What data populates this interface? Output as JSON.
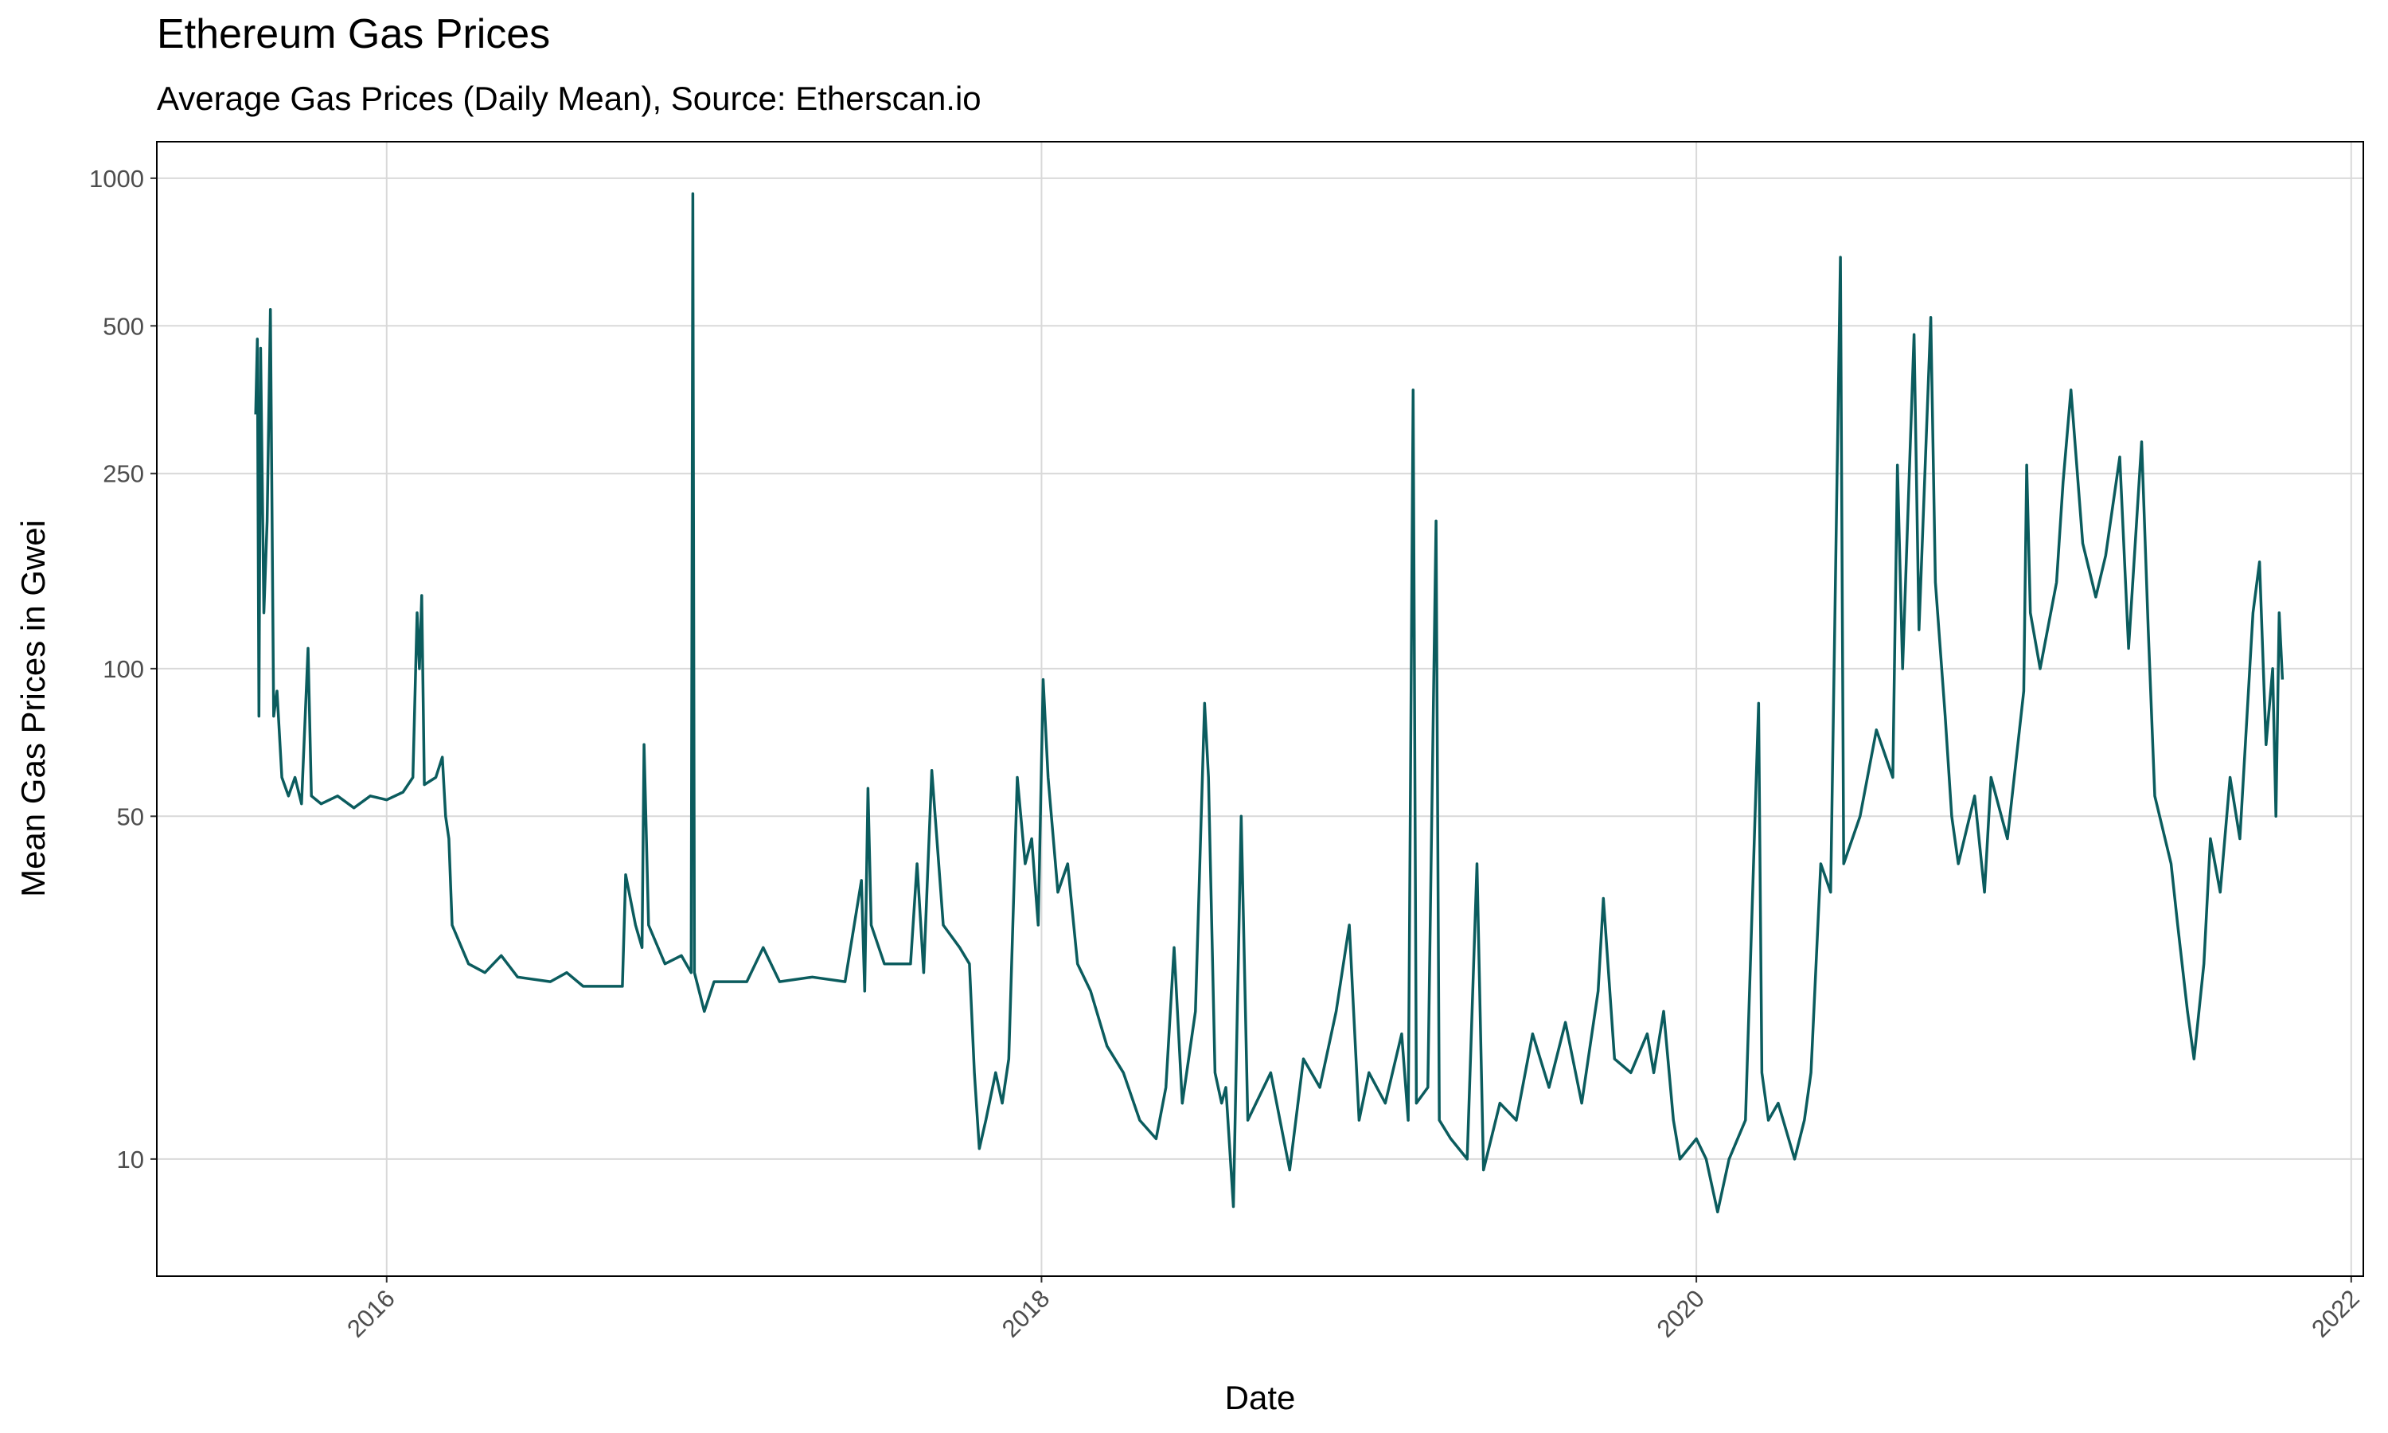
{
  "chart_data": {
    "type": "line",
    "title": "Ethereum Gas Prices",
    "subtitle": "Average Gas Prices (Daily Mean), Source: Etherscan.io",
    "xlabel": "Date",
    "ylabel": "Mean Gas Prices in Gwei",
    "color": "#0b5c5e",
    "log_y": true,
    "grid": true,
    "xlim": [
      2015.298,
      2022.037
    ],
    "xticks": [
      2016,
      2018,
      2020,
      2022
    ],
    "ylim": [
      5.77,
      1187
    ],
    "yticks": [
      10,
      50,
      100,
      250,
      500,
      1000
    ],
    "x": [
      2015.6,
      2015.605,
      2015.61,
      2015.615,
      2015.625,
      2015.635,
      2015.645,
      2015.655,
      2015.665,
      2015.68,
      2015.7,
      2015.72,
      2015.74,
      2015.76,
      2015.77,
      2015.8,
      2015.85,
      2015.9,
      2015.95,
      2016.0,
      2016.05,
      2016.08,
      2016.093,
      2016.1,
      2016.107,
      2016.115,
      2016.15,
      2016.17,
      2016.18,
      2016.19,
      2016.2,
      2016.25,
      2016.3,
      2016.35,
      2016.4,
      2016.5,
      2016.55,
      2016.6,
      2016.72,
      2016.73,
      2016.76,
      2016.78,
      2016.786,
      2016.8,
      2016.85,
      2016.9,
      2016.93,
      2016.935,
      2016.94,
      2016.97,
      2017.0,
      2017.1,
      2017.15,
      2017.2,
      2017.3,
      2017.4,
      2017.45,
      2017.46,
      2017.47,
      2017.48,
      2017.52,
      2017.6,
      2017.62,
      2017.64,
      2017.665,
      2017.7,
      2017.75,
      2017.78,
      2017.795,
      2017.81,
      2017.83,
      2017.86,
      2017.88,
      2017.9,
      2017.926,
      2017.95,
      2017.97,
      2017.99,
      2018.005,
      2018.02,
      2018.05,
      2018.08,
      2018.11,
      2018.15,
      2018.2,
      2018.25,
      2018.3,
      2018.35,
      2018.38,
      2018.405,
      2018.43,
      2018.47,
      2018.498,
      2018.51,
      2018.53,
      2018.55,
      2018.563,
      2018.586,
      2018.61,
      2018.63,
      2018.7,
      2018.758,
      2018.8,
      2018.85,
      2018.9,
      2018.94,
      2018.97,
      2019.0,
      2019.05,
      2019.1,
      2019.12,
      2019.135,
      2019.145,
      2019.18,
      2019.205,
      2019.215,
      2019.25,
      2019.3,
      2019.33,
      2019.35,
      2019.4,
      2019.45,
      2019.5,
      2019.55,
      2019.6,
      2019.65,
      2019.7,
      2019.716,
      2019.75,
      2019.8,
      2019.85,
      2019.87,
      2019.9,
      2019.93,
      2019.95,
      2020.0,
      2020.03,
      2020.065,
      2020.1,
      2020.15,
      2020.19,
      2020.2,
      2020.22,
      2020.25,
      2020.3,
      2020.33,
      2020.35,
      2020.38,
      2020.41,
      2020.44,
      2020.45,
      2020.5,
      2020.55,
      2020.6,
      2020.614,
      2020.63,
      2020.665,
      2020.68,
      2020.716,
      2020.73,
      2020.76,
      2020.78,
      2020.8,
      2020.85,
      2020.88,
      2020.9,
      2020.95,
      2021.0,
      2021.009,
      2021.02,
      2021.05,
      2021.1,
      2021.12,
      2021.144,
      2021.18,
      2021.22,
      2021.25,
      2021.293,
      2021.32,
      2021.36,
      2021.38,
      2021.4,
      2021.45,
      2021.47,
      2021.5,
      2021.52,
      2021.55,
      2021.57,
      2021.6,
      2021.63,
      2021.66,
      2021.7,
      2021.72,
      2021.74,
      2021.76,
      2021.77,
      2021.78,
      2021.79
    ],
    "values": [
      330,
      470,
      80,
      450,
      130,
      200,
      540,
      80,
      90,
      60,
      55,
      60,
      53,
      110,
      55,
      53,
      55,
      52,
      55,
      54,
      56,
      60,
      130,
      100,
      141,
      58,
      60,
      66,
      50,
      45,
      30,
      25,
      24,
      26,
      23.5,
      23,
      24,
      22.5,
      22.5,
      38,
      30,
      27,
      70,
      30,
      25,
      26,
      24,
      930,
      24,
      20,
      23,
      23,
      27,
      23,
      23.5,
      23,
      37,
      22,
      57,
      30,
      25,
      25,
      40,
      24,
      62,
      30,
      27,
      25,
      15,
      10.5,
      12,
      15,
      13,
      16,
      60,
      40,
      45,
      30,
      95,
      60,
      35,
      40,
      25,
      22,
      17,
      15,
      12,
      11,
      14,
      27,
      13,
      20,
      85,
      60,
      15,
      13,
      14,
      8,
      50,
      12,
      15,
      9.5,
      16,
      14,
      20,
      30,
      12,
      15,
      13,
      18,
      12,
      370,
      13,
      14,
      200,
      12,
      11,
      10,
      40,
      9.5,
      13,
      12,
      18,
      14,
      19,
      13,
      22,
      34,
      16,
      15,
      18,
      15,
      20,
      12,
      10,
      11,
      10,
      7.8,
      10,
      12,
      85,
      15,
      12,
      13,
      10,
      12,
      15,
      40,
      35,
      690,
      40,
      50,
      75,
      60,
      260,
      100,
      480,
      120,
      520,
      150,
      80,
      50,
      40,
      55,
      35,
      60,
      45,
      90,
      260,
      130,
      100,
      150,
      240,
      370,
      180,
      140,
      170,
      270,
      110,
      290,
      120,
      55,
      40,
      30,
      20,
      16,
      25,
      45,
      35,
      60,
      45,
      130,
      165,
      70,
      100,
      50,
      130,
      95
    ]
  }
}
